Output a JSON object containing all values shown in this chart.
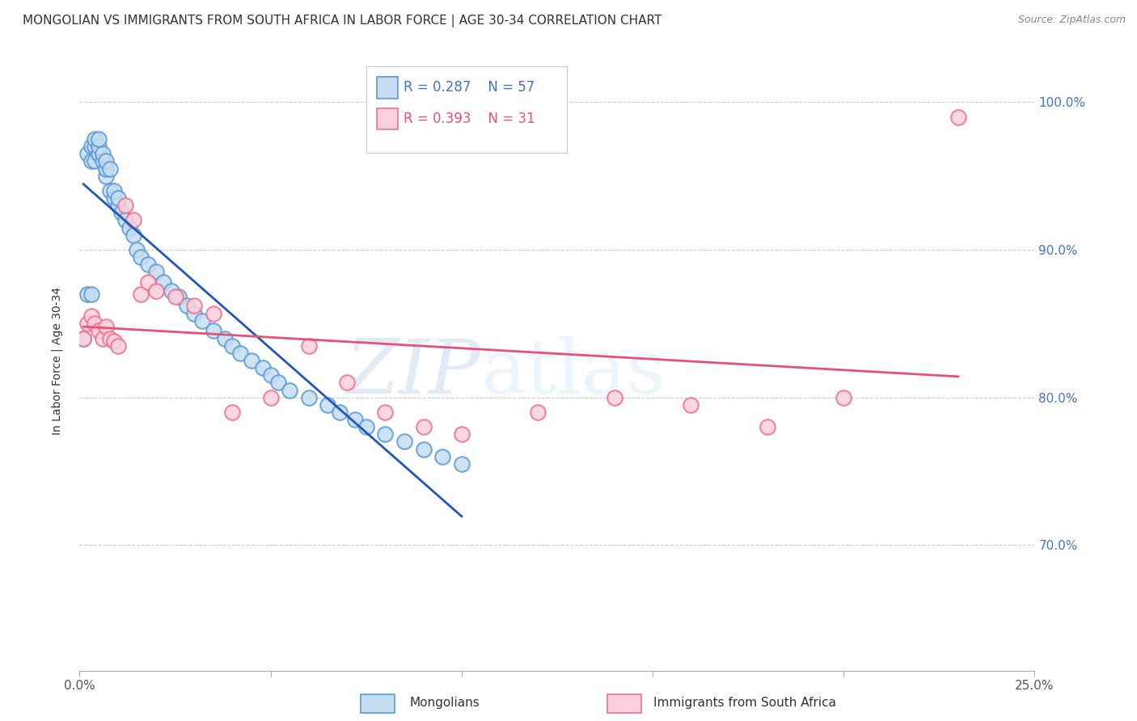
{
  "title": "MONGOLIAN VS IMMIGRANTS FROM SOUTH AFRICA IN LABOR FORCE | AGE 30-34 CORRELATION CHART",
  "source": "Source: ZipAtlas.com",
  "ylabel": "In Labor Force | Age 30-34",
  "xlim": [
    0.0,
    0.25
  ],
  "ylim": [
    0.615,
    1.035
  ],
  "xticks": [
    0.0,
    0.05,
    0.1,
    0.15,
    0.2,
    0.25
  ],
  "xticklabels": [
    "0.0%",
    "",
    "",
    "",
    "",
    "25.0%"
  ],
  "yticks": [
    0.7,
    0.8,
    0.9,
    1.0
  ],
  "yticklabels": [
    "70.0%",
    "80.0%",
    "90.0%",
    "100.0%"
  ],
  "legend_r1": "R = 0.287",
  "legend_n1": "N = 57",
  "legend_r2": "R = 0.393",
  "legend_n2": "N = 31",
  "blue_line_color": "#2255bb",
  "pink_line_color": "#e8507a",
  "blue_scatter_edge": "#5b9bd5",
  "blue_scatter_face": "#c5ddf0",
  "pink_scatter_edge": "#f07090",
  "pink_scatter_face": "#fad0dc",
  "right_tick_color": "#4472c4",
  "background_color": "#ffffff",
  "title_fontsize": 11,
  "tick_fontsize": 11,
  "watermark_text": "ZIPatlas",
  "blue_scatter_x": [
    0.001,
    0.002,
    0.002,
    0.003,
    0.003,
    0.003,
    0.004,
    0.004,
    0.004,
    0.005,
    0.005,
    0.005,
    0.005,
    0.006,
    0.006,
    0.007,
    0.007,
    0.007,
    0.008,
    0.008,
    0.009,
    0.009,
    0.01,
    0.01,
    0.011,
    0.012,
    0.013,
    0.014,
    0.015,
    0.016,
    0.018,
    0.02,
    0.022,
    0.024,
    0.026,
    0.028,
    0.03,
    0.032,
    0.035,
    0.038,
    0.04,
    0.042,
    0.045,
    0.048,
    0.05,
    0.052,
    0.055,
    0.06,
    0.065,
    0.068,
    0.072,
    0.075,
    0.08,
    0.085,
    0.09,
    0.095,
    0.1
  ],
  "blue_scatter_y": [
    0.84,
    0.87,
    0.965,
    0.87,
    0.96,
    0.97,
    0.96,
    0.97,
    0.975,
    0.965,
    0.965,
    0.97,
    0.975,
    0.96,
    0.965,
    0.95,
    0.955,
    0.96,
    0.94,
    0.955,
    0.935,
    0.94,
    0.93,
    0.935,
    0.925,
    0.92,
    0.915,
    0.91,
    0.9,
    0.895,
    0.89,
    0.885,
    0.878,
    0.872,
    0.868,
    0.862,
    0.857,
    0.852,
    0.845,
    0.84,
    0.835,
    0.83,
    0.825,
    0.82,
    0.815,
    0.81,
    0.805,
    0.8,
    0.795,
    0.79,
    0.785,
    0.78,
    0.775,
    0.77,
    0.765,
    0.76,
    0.755
  ],
  "pink_scatter_x": [
    0.001,
    0.002,
    0.003,
    0.004,
    0.005,
    0.006,
    0.007,
    0.008,
    0.009,
    0.01,
    0.012,
    0.014,
    0.016,
    0.018,
    0.02,
    0.025,
    0.03,
    0.035,
    0.04,
    0.05,
    0.06,
    0.07,
    0.08,
    0.09,
    0.1,
    0.12,
    0.14,
    0.16,
    0.18,
    0.2,
    0.23
  ],
  "pink_scatter_y": [
    0.84,
    0.85,
    0.855,
    0.85,
    0.845,
    0.84,
    0.848,
    0.84,
    0.838,
    0.835,
    0.93,
    0.92,
    0.87,
    0.878,
    0.872,
    0.868,
    0.862,
    0.857,
    0.79,
    0.8,
    0.835,
    0.81,
    0.79,
    0.78,
    0.775,
    0.79,
    0.8,
    0.795,
    0.78,
    0.8,
    0.99
  ]
}
